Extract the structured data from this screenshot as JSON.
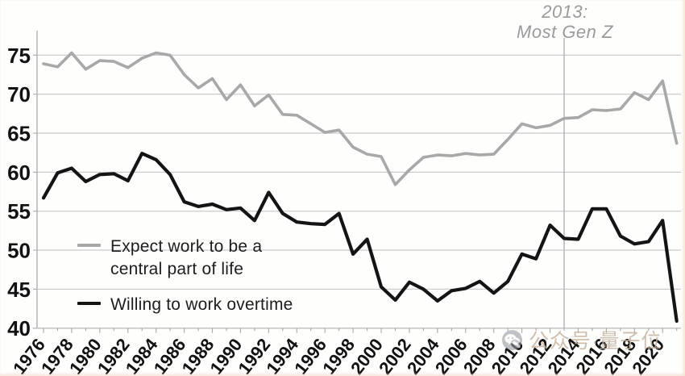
{
  "annotation": {
    "line1": "2013:",
    "line2": "Most Gen Z"
  },
  "legend": {
    "items": [
      {
        "label": "Expect work to be a central part of life",
        "color": "#a8a8a8"
      },
      {
        "label": "Willing to work overtime",
        "color": "#141414"
      }
    ]
  },
  "watermark": {
    "text": "公众号·量子位",
    "icon": "wechat-chat-bubble-icon"
  },
  "chart_data": {
    "type": "line",
    "title": "",
    "xlabel": "",
    "ylabel": "",
    "ylim": [
      40,
      75
    ],
    "y_ticks": [
      40,
      45,
      50,
      55,
      60,
      65,
      70,
      75
    ],
    "x_tick_labels": [
      "1976",
      "1978",
      "1980",
      "1982",
      "1984",
      "1986",
      "1988",
      "1990",
      "1992",
      "1994",
      "1996",
      "1998",
      "2000",
      "2002",
      "2004",
      "2006",
      "2008",
      "2010",
      "2012",
      "2014",
      "2016",
      "2018",
      "2020"
    ],
    "grid": "horizontal-only",
    "legend_position": "inside-lower-left",
    "annotation_marker": {
      "x": 2013,
      "text": "2013: Most Gen Z"
    },
    "years": [
      1976,
      1977,
      1978,
      1979,
      1980,
      1981,
      1982,
      1983,
      1984,
      1985,
      1986,
      1987,
      1988,
      1989,
      1990,
      1991,
      1992,
      1993,
      1994,
      1995,
      1996,
      1997,
      1998,
      1999,
      2000,
      2001,
      2002,
      2003,
      2004,
      2005,
      2006,
      2007,
      2008,
      2009,
      2010,
      2011,
      2012,
      2013,
      2014,
      2015,
      2016,
      2017,
      2018,
      2019,
      2020,
      2021
    ],
    "series": [
      {
        "name": "Expect work to be a central part of life",
        "color": "#a8a8a8",
        "line_width": 3.6,
        "values": [
          73.9,
          73.5,
          75.3,
          73.2,
          74.3,
          74.2,
          73.4,
          74.6,
          75.3,
          75.0,
          72.5,
          70.8,
          72.0,
          69.3,
          71.2,
          68.5,
          69.9,
          67.4,
          67.3,
          66.2,
          65.1,
          65.4,
          63.2,
          62.3,
          62.0,
          58.4,
          60.3,
          61.9,
          62.2,
          62.1,
          62.4,
          62.2,
          62.3,
          64.2,
          66.2,
          65.7,
          66.0,
          66.9,
          67.0,
          68.0,
          67.9,
          68.1,
          70.2,
          69.3,
          71.7,
          63.7
        ]
      },
      {
        "name": "Willing to work overtime",
        "color": "#141414",
        "line_width": 4.2,
        "values": [
          56.7,
          59.9,
          60.5,
          58.8,
          59.7,
          59.8,
          58.9,
          62.4,
          61.6,
          59.7,
          56.2,
          55.6,
          55.9,
          55.2,
          55.4,
          53.8,
          57.4,
          54.7,
          53.6,
          53.4,
          53.3,
          54.7,
          49.5,
          51.4,
          45.3,
          43.6,
          45.9,
          45.0,
          43.5,
          44.8,
          45.1,
          46.0,
          44.5,
          46.0,
          49.5,
          48.9,
          53.2,
          51.5,
          51.4,
          55.3,
          55.3,
          51.8,
          50.8,
          51.1,
          53.8,
          40.9
        ]
      }
    ]
  }
}
